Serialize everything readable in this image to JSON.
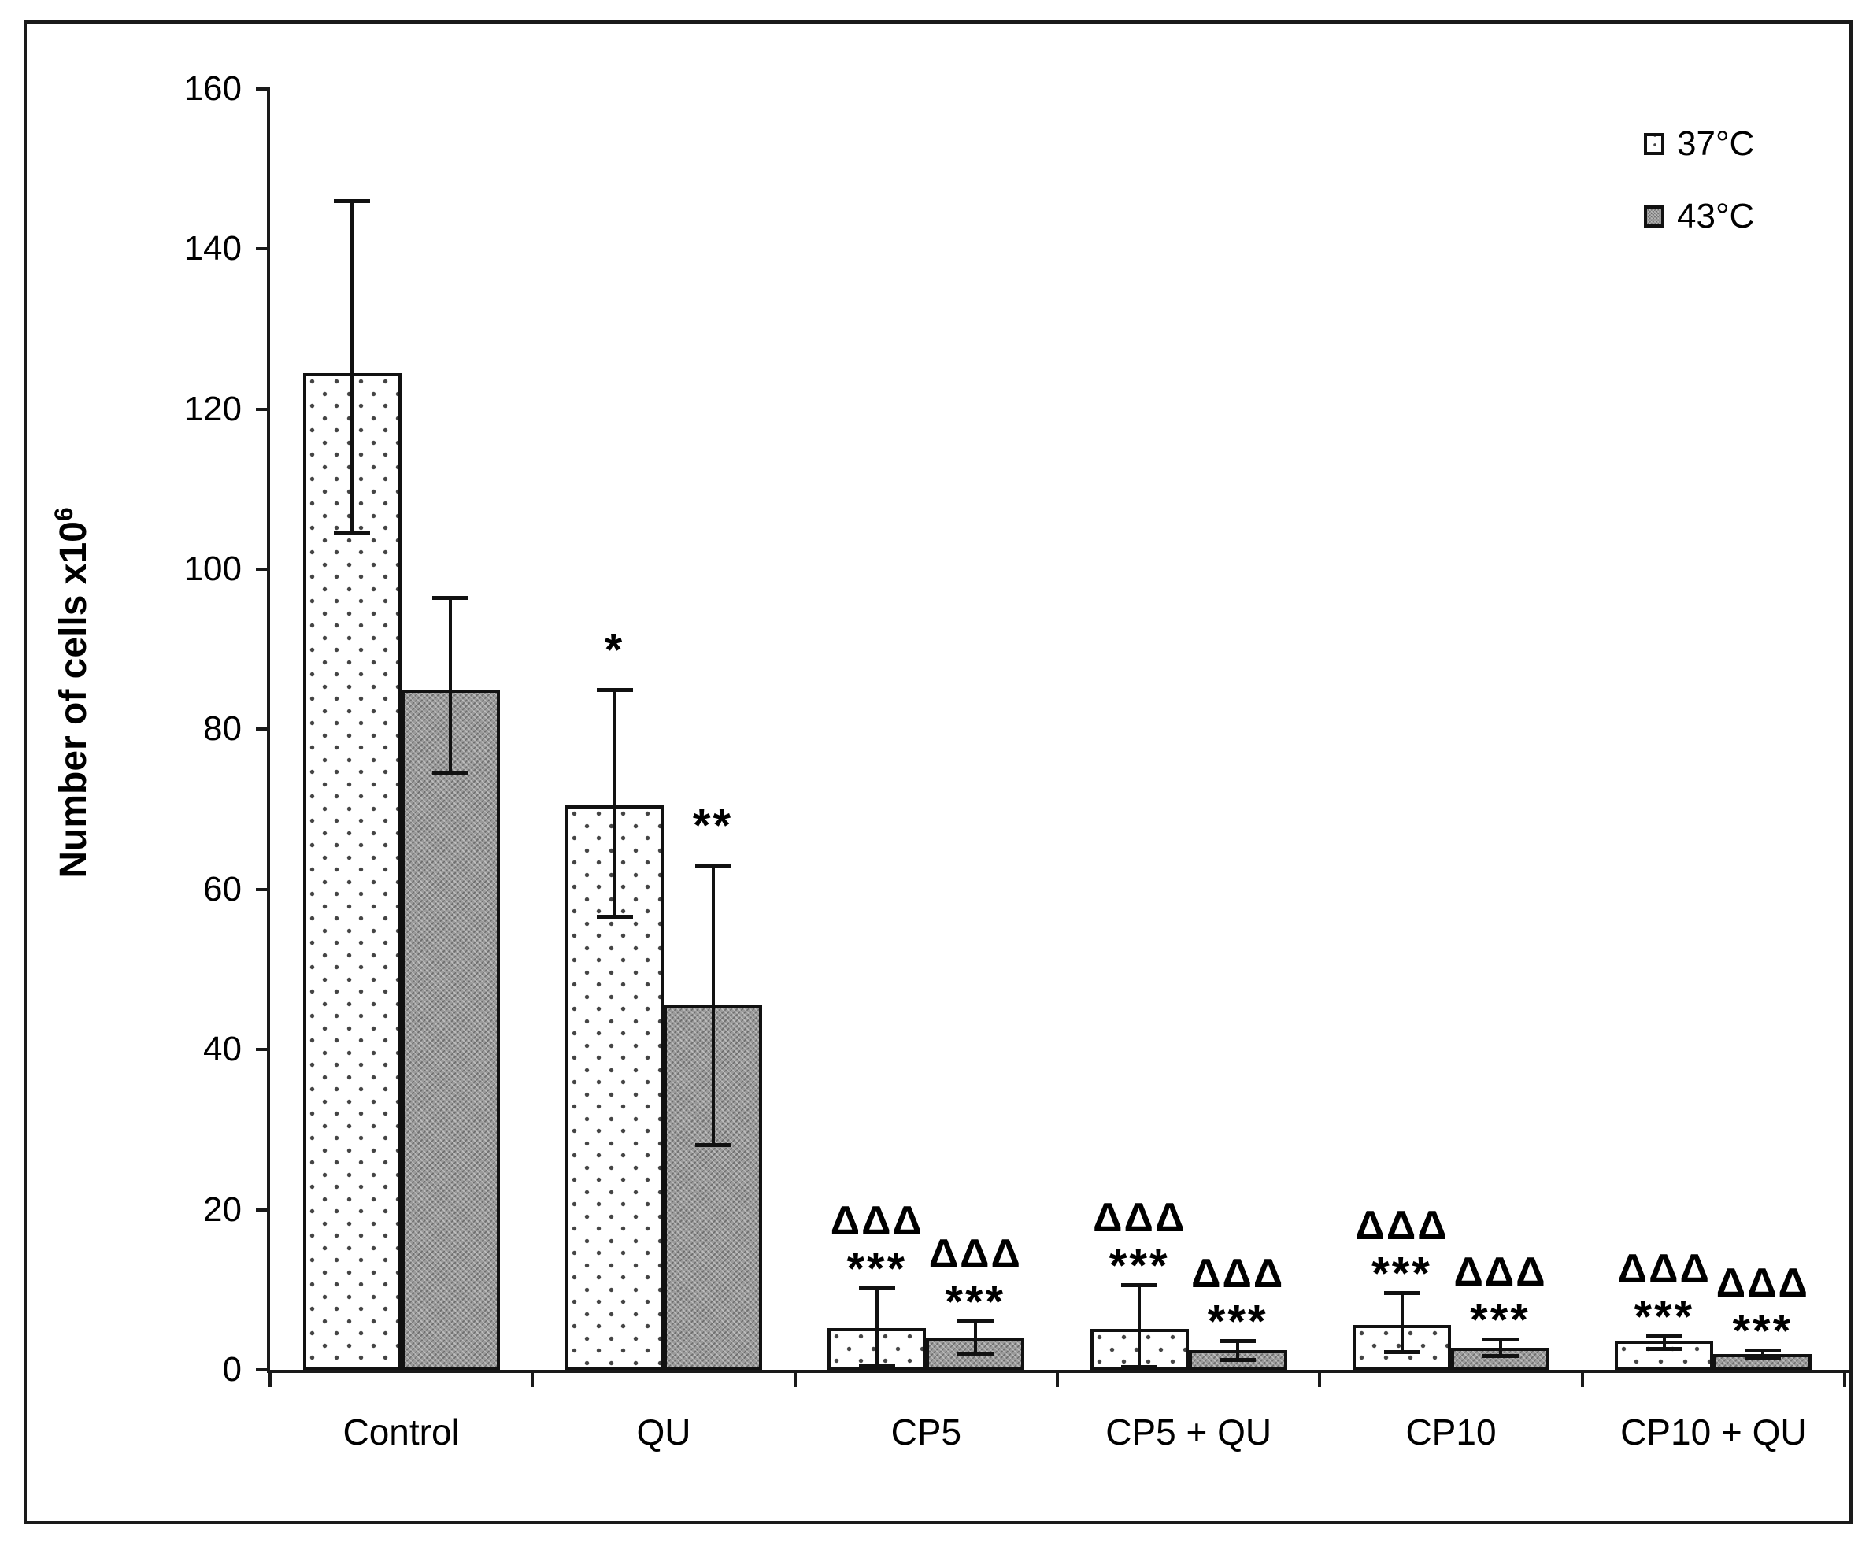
{
  "figure": {
    "background": "#ffffff",
    "border_color": "#1a1a1a"
  },
  "colors": {
    "axis": "#1a1a1a",
    "bar_border": "#111111",
    "bar37_fill": "#ffffff",
    "bar37_dot": "#444444",
    "bar43_fill": "#9a9a9a",
    "text": "#000000"
  },
  "y_axis": {
    "title": "Number of cells x10",
    "title_exponent": "6",
    "min": 0,
    "max": 160,
    "tick_step": 20,
    "tick_labels": [
      "0",
      "20",
      "40",
      "60",
      "80",
      "100",
      "120",
      "140",
      "160"
    ]
  },
  "legend": [
    {
      "label": "37°C",
      "marker": "dotted-white-square"
    },
    {
      "label": "43°C",
      "marker": "gray-hatched-square"
    }
  ],
  "chart_data": {
    "type": "bar",
    "title": "",
    "xlabel": "",
    "ylabel": "Number of cells x10^6",
    "ylim": [
      0,
      160
    ],
    "ytick_step": 20,
    "grid": false,
    "legend_position": "top-right-inside",
    "categories": [
      "Control",
      "QU",
      "CP5",
      "CP5 + QU",
      "CP10",
      "CP10 + QU"
    ],
    "series": [
      {
        "name": "37°C",
        "pattern": "white-dotted",
        "values": [
          124.5,
          70.5,
          5.2,
          5.1,
          5.6,
          3.6
        ],
        "err_up": [
          21.5,
          14.5,
          5.0,
          5.5,
          4.0,
          0.6
        ],
        "err_down": [
          20.0,
          14.0,
          4.7,
          4.8,
          3.4,
          1.0
        ],
        "significance": [
          null,
          {
            "stars": "*"
          },
          {
            "delta": "ΔΔΔ",
            "stars": "***"
          },
          {
            "delta": "ΔΔΔ",
            "stars": "***"
          },
          {
            "delta": "ΔΔΔ",
            "stars": "***"
          },
          {
            "delta": "ΔΔΔ",
            "stars": "***"
          }
        ]
      },
      {
        "name": "43°C",
        "pattern": "gray-hatched",
        "values": [
          85.0,
          45.5,
          4.0,
          2.5,
          2.8,
          2.0
        ],
        "err_up": [
          11.5,
          17.5,
          2.1,
          1.1,
          1.0,
          0.5
        ],
        "err_down": [
          10.5,
          17.5,
          2.0,
          1.3,
          1.1,
          0.5
        ],
        "significance": [
          null,
          {
            "stars": "**"
          },
          {
            "delta": "ΔΔΔ",
            "stars": "***"
          },
          {
            "delta": "ΔΔΔ",
            "stars": "***"
          },
          {
            "delta": "ΔΔΔ",
            "stars": "***"
          },
          {
            "delta": "ΔΔΔ",
            "stars": "***"
          }
        ]
      }
    ]
  }
}
